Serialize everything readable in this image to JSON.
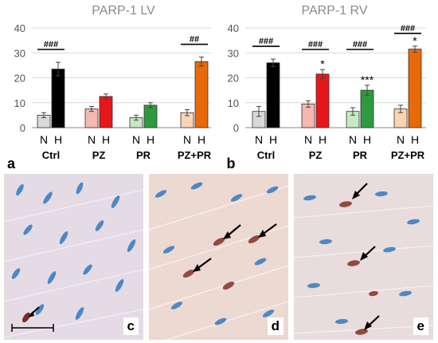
{
  "chart_data": [
    {
      "type": "bar",
      "title": "PARP-1 LV",
      "panel_label": "a",
      "categories": [
        "Ctrl",
        "PZ",
        "PR",
        "PZ+PR"
      ],
      "sub_categories": [
        "N",
        "H"
      ],
      "ylim": [
        0,
        40
      ],
      "yticks": [
        0,
        10,
        20,
        30,
        40
      ],
      "colors": {
        "N": [
          "#d9d9d9",
          "#f4b8b0",
          "#c6e8c2",
          "#fbd3b5"
        ],
        "H": [
          "#000000",
          "#e8161b",
          "#2e9a3f",
          "#e8680a"
        ]
      },
      "series": [
        {
          "name": "N",
          "values": [
            5,
            7.5,
            4,
            6
          ],
          "errors": [
            1,
            1,
            1,
            1.2
          ]
        },
        {
          "name": "H",
          "values": [
            23.5,
            12.5,
            9,
            26.5
          ],
          "errors": [
            2.7,
            1,
            1,
            1.8
          ]
        }
      ],
      "brackets": [
        {
          "group": 0,
          "label": "###"
        },
        {
          "group": 3,
          "label": "##"
        }
      ],
      "asterisks": []
    },
    {
      "type": "bar",
      "title": "PARP-1 RV",
      "panel_label": "b",
      "categories": [
        "Ctrl",
        "PZ",
        "PR",
        "PZ+PR"
      ],
      "sub_categories": [
        "N",
        "H"
      ],
      "ylim": [
        0,
        40
      ],
      "yticks": [
        0,
        10,
        20,
        30,
        40
      ],
      "colors": {
        "N": [
          "#d9d9d9",
          "#f4b8b0",
          "#c6e8c2",
          "#fbd3b5"
        ],
        "H": [
          "#000000",
          "#e8161b",
          "#2e9a3f",
          "#e8680a"
        ]
      },
      "series": [
        {
          "name": "N",
          "values": [
            6.5,
            9.5,
            6.5,
            7.5
          ],
          "errors": [
            2,
            1.3,
            1.5,
            1.5
          ]
        },
        {
          "name": "H",
          "values": [
            26,
            21.5,
            15,
            31.5
          ],
          "errors": [
            1.5,
            1.8,
            2,
            1.2
          ]
        }
      ],
      "brackets": [
        {
          "group": 0,
          "label": "###"
        },
        {
          "group": 1,
          "label": "###"
        },
        {
          "group": 2,
          "label": "###"
        },
        {
          "group": 3,
          "label": "###"
        }
      ],
      "asterisks": [
        {
          "group": 1,
          "label": "*"
        },
        {
          "group": 2,
          "label": "***"
        },
        {
          "group": 3,
          "label": "*"
        }
      ]
    }
  ],
  "micrographs": [
    {
      "label": "c"
    },
    {
      "label": "d"
    },
    {
      "label": "e"
    }
  ]
}
